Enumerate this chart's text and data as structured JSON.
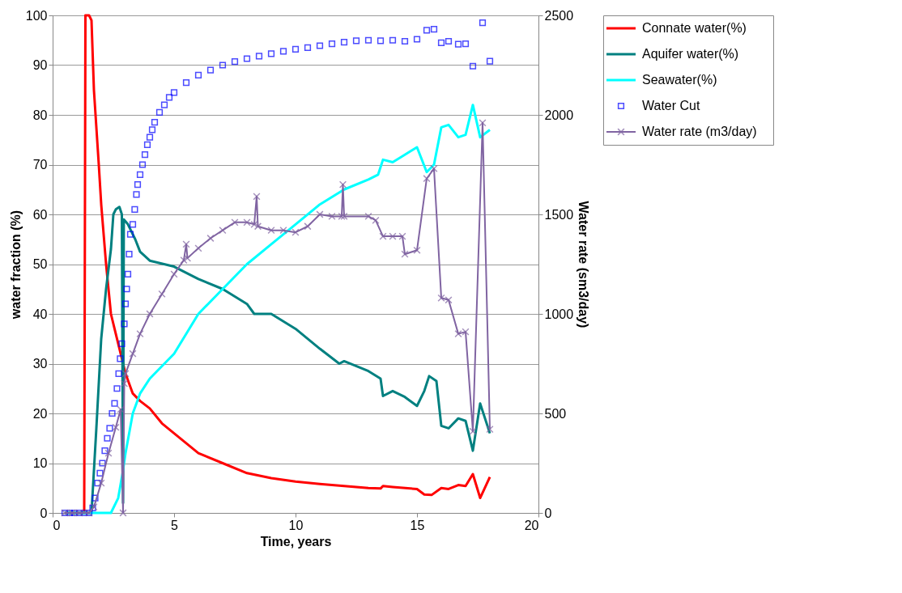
{
  "chart_data": {
    "type": "line",
    "xlabel": "Time, years",
    "ylabel": "water fraction (%)",
    "y2label": "Water rate (sm3/day)",
    "xlim": [
      0,
      20
    ],
    "xticks": [
      0,
      5,
      10,
      15,
      20
    ],
    "ylim": [
      0,
      100
    ],
    "yticks": [
      0,
      10,
      20,
      30,
      40,
      50,
      60,
      70,
      80,
      90,
      100
    ],
    "y2lim": [
      0,
      2500
    ],
    "y2ticks": [
      0,
      500,
      1000,
      1500,
      2000,
      2500
    ],
    "grid": "y",
    "legend": "right",
    "line_style": "solid",
    "series": [
      {
        "name": "Connate water(%)",
        "marker": "none",
        "color": "#ff0000",
        "x": [
          0.5,
          1.3,
          1.35,
          1.5,
          1.6,
          1.7,
          1.9,
          2.0,
          2.2,
          2.4,
          2.6,
          2.8,
          3.0,
          3.3,
          3.6,
          4.0,
          4.5,
          5,
          5.5,
          6,
          7,
          8,
          9,
          10,
          11,
          12,
          13,
          13.5,
          13.6,
          14,
          15,
          15.3,
          15.6,
          16,
          16.3,
          16.7,
          17,
          17.3,
          17.6,
          18
        ],
        "values": [
          0,
          0,
          100,
          100,
          99,
          85,
          70,
          62,
          50,
          40,
          36,
          32,
          28,
          24,
          22.5,
          21,
          18,
          16,
          14,
          12,
          10,
          8,
          7,
          6.3,
          5.8,
          5.4,
          5,
          4.9,
          5.4,
          5.2,
          4.8,
          3.7,
          3.6,
          5.0,
          4.8,
          5.6,
          5.4,
          7.8,
          3,
          7.2
        ]
      },
      {
        "name": "Aquifer water(%)",
        "marker": "none",
        "color": "#008080",
        "x": [
          0.5,
          1.6,
          1.8,
          2.0,
          2.2,
          2.4,
          2.5,
          2.6,
          2.75,
          2.85,
          2.9,
          2.93,
          3.1,
          3.4,
          3.6,
          4,
          5,
          6,
          7,
          8,
          8.3,
          9,
          10,
          11,
          11.8,
          12,
          13,
          13.5,
          13.6,
          14,
          14.5,
          15,
          15.3,
          15.5,
          15.8,
          16,
          16.3,
          16.7,
          17,
          17.3,
          17.6,
          18
        ],
        "values": [
          0,
          0,
          17,
          35,
          45,
          53,
          60,
          61,
          61.5,
          60,
          2,
          59,
          58,
          55,
          52.5,
          50.7,
          49.5,
          47,
          45,
          42,
          40,
          40,
          37,
          33,
          30,
          30.5,
          28.5,
          27,
          23.5,
          24.5,
          23.3,
          21.5,
          24.5,
          27.5,
          26.5,
          17.5,
          17,
          19,
          18.5,
          12.5,
          22,
          16
        ]
      },
      {
        "name": "Seawater(%)",
        "marker": "none",
        "color": "#00ffff",
        "x": [
          0.5,
          2.4,
          2.7,
          2.88,
          3.0,
          3.3,
          3.6,
          4,
          5,
          6,
          7,
          8,
          9,
          10,
          11,
          12,
          13,
          13.4,
          13.6,
          14,
          14.5,
          15,
          15.4,
          15.7,
          16,
          16.3,
          16.7,
          17,
          17.3,
          17.6,
          18
        ],
        "values": [
          0,
          0,
          3,
          8,
          12,
          20,
          24,
          27,
          32,
          40,
          45,
          50,
          54,
          58,
          62,
          65,
          67,
          68,
          71,
          70.5,
          72,
          73.5,
          68.5,
          70,
          77.5,
          78,
          75.5,
          76,
          82,
          75.5,
          77
        ]
      },
      {
        "name": "Water Cut",
        "type": "scatter",
        "marker": "square",
        "color": "#0000ff",
        "x": [
          0.5,
          0.7,
          0.9,
          1.1,
          1.3,
          1.5,
          1.65,
          1.75,
          1.85,
          1.95,
          2.05,
          2.15,
          2.25,
          2.35,
          2.45,
          2.55,
          2.65,
          2.72,
          2.78,
          2.85,
          2.95,
          3.0,
          3.05,
          3.1,
          3.15,
          3.2,
          3.3,
          3.38,
          3.45,
          3.5,
          3.6,
          3.7,
          3.8,
          3.9,
          4.0,
          4.1,
          4.2,
          4.4,
          4.6,
          4.8,
          5.0,
          5.5,
          6,
          6.5,
          7,
          7.5,
          8,
          8.5,
          9,
          9.5,
          10,
          10.5,
          11,
          11.5,
          12,
          12.5,
          13,
          13.5,
          14,
          14.5,
          15,
          15.4,
          15.7,
          16,
          16.3,
          16.7,
          17,
          17.3,
          17.7,
          18
        ],
        "values": [
          0,
          0,
          0,
          0,
          0,
          0,
          1,
          3,
          6,
          8,
          10,
          12.5,
          15,
          17,
          20,
          22,
          25,
          28,
          31,
          34,
          38,
          42,
          45,
          48,
          52,
          56,
          58,
          61,
          64,
          66,
          68,
          70,
          72,
          74,
          75.5,
          77,
          78.5,
          80.5,
          82,
          83.5,
          84.5,
          86.5,
          88,
          89,
          90,
          90.7,
          91.3,
          91.8,
          92.3,
          92.8,
          93.2,
          93.5,
          93.9,
          94.3,
          94.6,
          94.9,
          95,
          94.9,
          95,
          94.8,
          95.2,
          97,
          97.2,
          94.5,
          94.8,
          94.2,
          94.3,
          89.8,
          98.5,
          90.8
        ]
      },
      {
        "name": "Water rate (m3/day)",
        "marker": "cross",
        "axis": "y2",
        "color": "#8064a2",
        "x": [
          0.5,
          0.8,
          1.1,
          1.5,
          1.7,
          2,
          2.3,
          2.6,
          2.8,
          2.9,
          2.95,
          3,
          3.3,
          3.6,
          4,
          4.5,
          5,
          5.4,
          5.5,
          5.55,
          6,
          6.5,
          7,
          7.5,
          8,
          8.3,
          8.4,
          8.45,
          9,
          9.5,
          10,
          10.5,
          11,
          11.5,
          11.9,
          11.95,
          12,
          13,
          13.3,
          13.6,
          14,
          14.4,
          14.5,
          15,
          15.4,
          15.7,
          16,
          16.3,
          16.7,
          17,
          17.3,
          17.7,
          18
        ],
        "values": [
          0,
          0,
          0,
          0,
          30,
          150,
          300,
          430,
          520,
          0,
          650,
          700,
          800,
          900,
          1000,
          1100,
          1200,
          1270,
          1350,
          1280,
          1330,
          1380,
          1420,
          1460,
          1460,
          1450,
          1590,
          1440,
          1420,
          1420,
          1410,
          1440,
          1500,
          1490,
          1490,
          1650,
          1490,
          1490,
          1470,
          1390,
          1390,
          1390,
          1300,
          1320,
          1680,
          1730,
          1080,
          1070,
          900,
          910,
          410,
          1960,
          420
        ]
      }
    ]
  }
}
